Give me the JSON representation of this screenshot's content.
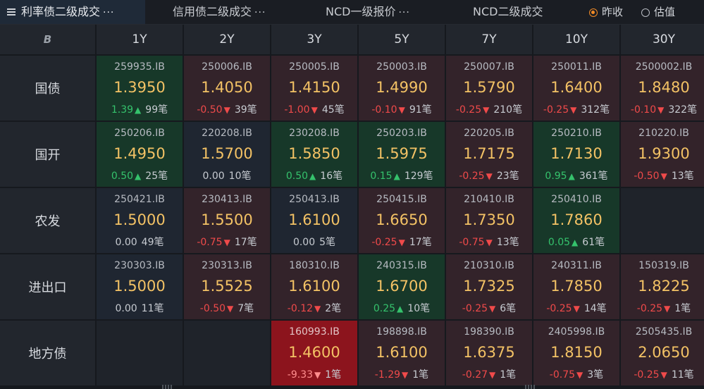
{
  "tabs": [
    {
      "label": "利率债二级成交",
      "dots": "···",
      "active": true
    },
    {
      "label": "信用债二级成交",
      "dots": "···",
      "active": false
    },
    {
      "label": "NCD一级报价",
      "dots": "···",
      "active": false
    },
    {
      "label": "NCD二级成交",
      "dots": "",
      "active": false
    }
  ],
  "radios": [
    {
      "label": "昨收",
      "selected": true
    },
    {
      "label": "估值",
      "selected": false
    }
  ],
  "logo": "B",
  "columns": [
    "1Y",
    "2Y",
    "3Y",
    "5Y",
    "7Y",
    "10Y",
    "30Y"
  ],
  "rows": [
    {
      "label": "国债",
      "cells": [
        {
          "code": "259935.IB",
          "price": "1.3950",
          "chg": "1.39",
          "dir": "up",
          "count": "99笔",
          "bg": "up"
        },
        {
          "code": "250006.IB",
          "price": "1.4050",
          "chg": "-0.50",
          "dir": "down",
          "count": "39笔",
          "bg": "down"
        },
        {
          "code": "250005.IB",
          "price": "1.4150",
          "chg": "-1.00",
          "dir": "down",
          "count": "45笔",
          "bg": "down"
        },
        {
          "code": "250003.IB",
          "price": "1.4990",
          "chg": "-0.10",
          "dir": "down",
          "count": "91笔",
          "bg": "down"
        },
        {
          "code": "250007.IB",
          "price": "1.5790",
          "chg": "-0.25",
          "dir": "down",
          "count": "210笔",
          "bg": "down"
        },
        {
          "code": "250011.IB",
          "price": "1.6400",
          "chg": "-0.25",
          "dir": "down",
          "count": "312笔",
          "bg": "down"
        },
        {
          "code": "2500002.IB",
          "price": "1.8480",
          "chg": "-0.10",
          "dir": "down",
          "count": "322笔",
          "bg": "down"
        }
      ]
    },
    {
      "label": "国开",
      "cells": [
        {
          "code": "250206.IB",
          "price": "1.4950",
          "chg": "0.50",
          "dir": "up",
          "count": "25笔",
          "bg": "up"
        },
        {
          "code": "220208.IB",
          "price": "1.5700",
          "chg": "0.00",
          "dir": "none",
          "count": "10笔",
          "bg": "flat"
        },
        {
          "code": "230208.IB",
          "price": "1.5850",
          "chg": "0.50",
          "dir": "up",
          "count": "16笔",
          "bg": "up"
        },
        {
          "code": "250203.IB",
          "price": "1.5975",
          "chg": "0.15",
          "dir": "up",
          "count": "129笔",
          "bg": "up"
        },
        {
          "code": "220205.IB",
          "price": "1.7175",
          "chg": "-0.25",
          "dir": "down",
          "count": "23笔",
          "bg": "down"
        },
        {
          "code": "250210.IB",
          "price": "1.7130",
          "chg": "0.95",
          "dir": "up",
          "count": "361笔",
          "bg": "up"
        },
        {
          "code": "210220.IB",
          "price": "1.9300",
          "chg": "-0.50",
          "dir": "down",
          "count": "13笔",
          "bg": "down"
        }
      ]
    },
    {
      "label": "农发",
      "cells": [
        {
          "code": "250421.IB",
          "price": "1.5000",
          "chg": "0.00",
          "dir": "none",
          "count": "49笔",
          "bg": "flat"
        },
        {
          "code": "230413.IB",
          "price": "1.5500",
          "chg": "-0.75",
          "dir": "down",
          "count": "17笔",
          "bg": "down"
        },
        {
          "code": "250413.IB",
          "price": "1.6100",
          "chg": "0.00",
          "dir": "none",
          "count": "5笔",
          "bg": "flat"
        },
        {
          "code": "250415.IB",
          "price": "1.6650",
          "chg": "-0.25",
          "dir": "down",
          "count": "17笔",
          "bg": "down"
        },
        {
          "code": "210410.IB",
          "price": "1.7350",
          "chg": "-0.75",
          "dir": "down",
          "count": "13笔",
          "bg": "down"
        },
        {
          "code": "250410.IB",
          "price": "1.7860",
          "chg": "0.05",
          "dir": "up",
          "count": "61笔",
          "bg": "up"
        },
        null
      ]
    },
    {
      "label": "进出口",
      "cells": [
        {
          "code": "230303.IB",
          "price": "1.5000",
          "chg": "0.00",
          "dir": "none",
          "count": "11笔",
          "bg": "flat"
        },
        {
          "code": "230313.IB",
          "price": "1.5525",
          "chg": "-0.50",
          "dir": "down",
          "count": "7笔",
          "bg": "down"
        },
        {
          "code": "180310.IB",
          "price": "1.6100",
          "chg": "-0.12",
          "dir": "down",
          "count": "2笔",
          "bg": "down"
        },
        {
          "code": "240315.IB",
          "price": "1.6700",
          "chg": "0.25",
          "dir": "up",
          "count": "10笔",
          "bg": "up"
        },
        {
          "code": "210310.IB",
          "price": "1.7325",
          "chg": "-0.25",
          "dir": "down",
          "count": "6笔",
          "bg": "down"
        },
        {
          "code": "240311.IB",
          "price": "1.7850",
          "chg": "-0.25",
          "dir": "down",
          "count": "14笔",
          "bg": "down"
        },
        {
          "code": "150319.IB",
          "price": "1.8225",
          "chg": "-0.25",
          "dir": "down",
          "count": "1笔",
          "bg": "down"
        }
      ]
    },
    {
      "label": "地方债",
      "cells": [
        null,
        null,
        {
          "code": "160993.IB",
          "price": "1.4600",
          "chg": "-9.33",
          "dir": "down",
          "count": "1笔",
          "bg": "hot"
        },
        {
          "code": "198898.IB",
          "price": "1.6100",
          "chg": "-1.29",
          "dir": "down",
          "count": "1笔",
          "bg": "down"
        },
        {
          "code": "198390.IB",
          "price": "1.6375",
          "chg": "-0.27",
          "dir": "down",
          "count": "1笔",
          "bg": "down"
        },
        {
          "code": "2405998.IB",
          "price": "1.8150",
          "chg": "-0.75",
          "dir": "down",
          "count": "3笔",
          "bg": "down"
        },
        {
          "code": "2505435.IB",
          "price": "2.0650",
          "chg": "-0.25",
          "dir": "down",
          "count": "11笔",
          "bg": "down"
        }
      ]
    }
  ],
  "colors": {
    "up": "#35c26c",
    "down": "#ef4a4a",
    "price": "#f3c265",
    "radio_on": "#f08a26"
  }
}
